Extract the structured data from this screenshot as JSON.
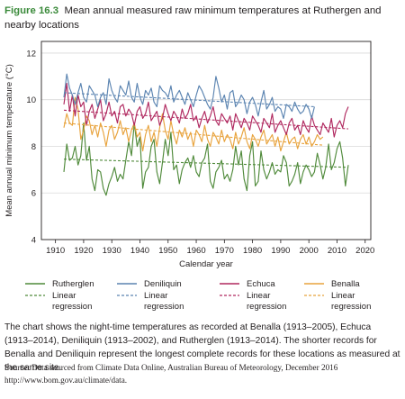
{
  "figure": {
    "number": "Figure 16.3",
    "title": "Mean annual measured raw minimum temperatures at Ruthergen and nearby locations"
  },
  "caption": "The chart shows the night-time temperatures as recorded at Benalla (1913–2005), Echuca (1913–2014), Deniliquin (1913–2002), and Rutherglen (1913–2014). The shorter records for Benalla and Deniliquin represent the longest complete records for these locations as measured at the same site.",
  "source": {
    "line1": "Source: Data sourced from Climate Data Online, Australian Bureau of Meteorology, December 2016",
    "line2": "http://www.bom.gov.au/climate/data."
  },
  "colors": {
    "Rutherglen": "#4f8a3a",
    "Deniliquin": "#5b84b1",
    "Echuca": "#b0285f",
    "Benalla": "#e8a33d",
    "axis": "#231f20",
    "grid": "#d9d9d9"
  },
  "chart_data": {
    "type": "line",
    "title": "",
    "xlabel": "Calendar year",
    "ylabel": "Mean annual minimum temperature (°C)",
    "xlim": [
      1905,
      2022
    ],
    "ylim": [
      4,
      12.5
    ],
    "xticks": [
      1910,
      1920,
      1930,
      1940,
      1950,
      1960,
      1970,
      1980,
      1990,
      2000,
      2010,
      2020
    ],
    "yticks": [
      4,
      6,
      8,
      10,
      12
    ],
    "grid": "horizontal",
    "legend_position": "bottom",
    "series": [
      {
        "name": "Rutherglen",
        "start": 1913,
        "values": [
          6.9,
          8.1,
          7.4,
          7.5,
          8.0,
          7.2,
          7.6,
          9.0,
          7.4,
          8.0,
          6.6,
          6.1,
          7.0,
          6.9,
          6.2,
          5.9,
          6.4,
          6.7,
          7.1,
          6.5,
          6.8,
          6.6,
          7.4,
          8.2,
          7.6,
          9.0,
          8.0,
          8.4,
          6.2,
          6.9,
          7.1,
          8.0,
          8.3,
          6.9,
          6.4,
          7.3,
          8.3,
          7.6,
          8.6,
          7.0,
          7.2,
          6.4,
          7.0,
          7.3,
          7.5,
          7.1,
          7.6,
          6.9,
          6.7,
          7.3,
          7.5,
          8.1,
          6.5,
          6.2,
          6.9,
          7.1,
          7.4,
          6.6,
          6.8,
          6.5,
          7.0,
          8.0,
          7.2,
          7.8,
          6.6,
          6.1,
          7.6,
          8.2,
          6.3,
          6.5,
          7.8,
          7.0,
          6.6,
          6.9,
          7.3,
          6.8,
          7.0,
          6.9,
          7.6,
          7.3,
          6.3,
          6.5,
          6.8,
          7.3,
          6.4,
          6.9,
          7.2,
          7.0,
          6.7,
          6.9,
          7.7,
          7.2,
          6.6,
          7.1,
          8.1,
          7.0,
          7.3,
          7.9,
          8.2,
          7.5,
          6.3,
          7.2
        ],
        "trend": [
          7.45,
          7.1
        ]
      },
      {
        "name": "Deniliquin",
        "start": 1913,
        "values": [
          10.1,
          11.1,
          10.5,
          10.2,
          9.8,
          10.3,
          10.7,
          10.1,
          9.9,
          10.6,
          10.4,
          10.2,
          9.7,
          10.1,
          10.3,
          9.8,
          10.9,
          10.4,
          10.1,
          9.9,
          10.6,
          10.4,
          10.2,
          10.8,
          10.1,
          9.9,
          10.7,
          10.1,
          9.8,
          10.4,
          10.2,
          10.5,
          9.9,
          9.7,
          10.6,
          10.4,
          10.3,
          10.1,
          10.6,
          9.9,
          10.2,
          10.4,
          10.1,
          9.8,
          10.3,
          10.0,
          9.7,
          10.2,
          10.6,
          10.4,
          10.1,
          9.8,
          9.6,
          10.1,
          11.0,
          10.5,
          9.9,
          10.2,
          9.6,
          10.3,
          10.4,
          9.7,
          9.9,
          10.2,
          10.0,
          9.4,
          9.9,
          10.1,
          9.8,
          9.3,
          9.9,
          10.4,
          9.6,
          9.8,
          10.1,
          9.5,
          9.7,
          9.6,
          9.2,
          9.8,
          9.7,
          9.5,
          9.9,
          9.6,
          9.4,
          9.5,
          9.8,
          9.6,
          9.2,
          9.7
        ],
        "trend": [
          10.3,
          9.7
        ]
      },
      {
        "name": "Echuca",
        "start": 1913,
        "values": [
          9.8,
          10.7,
          9.5,
          10.2,
          9.3,
          10.2,
          9.7,
          9.9,
          8.9,
          9.5,
          9.8,
          9.2,
          9.6,
          10.0,
          9.1,
          9.4,
          9.9,
          9.3,
          9.5,
          9.0,
          9.7,
          9.8,
          9.3,
          9.6,
          9.4,
          8.9,
          9.5,
          9.7,
          9.2,
          9.4,
          9.9,
          9.1,
          9.3,
          9.5,
          8.9,
          9.2,
          9.8,
          9.4,
          9.1,
          9.5,
          9.3,
          9.0,
          9.6,
          9.2,
          9.4,
          9.8,
          9.1,
          9.3,
          8.8,
          9.2,
          9.5,
          9.0,
          9.3,
          9.7,
          9.1,
          8.9,
          9.4,
          9.2,
          9.0,
          9.3,
          8.7,
          9.4,
          9.1,
          8.8,
          9.2,
          9.0,
          8.7,
          9.3,
          9.1,
          8.9,
          8.6,
          9.2,
          9.0,
          8.8,
          9.4,
          8.6,
          8.9,
          9.1,
          8.8,
          8.5,
          9.0,
          9.2,
          8.7,
          8.9,
          8.5,
          9.1,
          8.8,
          8.6,
          9.3,
          8.9,
          8.7,
          8.5,
          9.0,
          8.8,
          8.6,
          9.2,
          8.4,
          8.9,
          9.1,
          8.8,
          9.4,
          9.7
        ],
        "trend": [
          9.55,
          8.75
        ]
      },
      {
        "name": "Benalla",
        "start": 1913,
        "values": [
          8.8,
          9.4,
          9.0,
          8.9,
          10.1,
          9.6,
          8.3,
          8.7,
          9.3,
          9.1,
          8.5,
          8.9,
          8.4,
          9.0,
          8.6,
          8.0,
          8.7,
          8.9,
          8.3,
          8.6,
          9.1,
          8.5,
          8.8,
          8.2,
          8.7,
          9.0,
          8.4,
          8.6,
          7.8,
          8.5,
          8.9,
          8.2,
          8.6,
          8.0,
          8.8,
          9.4,
          8.7,
          8.3,
          9.1,
          8.5,
          8.1,
          8.7,
          8.4,
          8.8,
          8.3,
          8.6,
          8.0,
          8.7,
          8.5,
          8.2,
          8.9,
          8.3,
          8.0,
          8.6,
          8.4,
          8.1,
          8.7,
          8.2,
          8.5,
          8.3,
          7.9,
          8.6,
          8.1,
          8.4,
          8.8,
          8.2,
          7.9,
          8.5,
          8.3,
          8.0,
          8.4,
          8.7,
          8.1,
          8.3,
          8.5,
          8.0,
          8.4,
          7.8,
          8.2,
          8.6,
          8.1,
          8.3,
          8.4,
          7.9,
          8.3,
          8.5,
          8.1,
          8.4,
          8.0,
          8.2,
          8.5,
          8.3,
          8.4
        ],
        "trend": [
          9.0,
          8.05
        ]
      }
    ],
    "legend": [
      {
        "name": "Rutherglen",
        "trend_label_1": "Linear",
        "trend_label_2": "regression"
      },
      {
        "name": "Deniliquin",
        "trend_label_1": "Linear",
        "trend_label_2": "regression"
      },
      {
        "name": "Echuca",
        "trend_label_1": "Linear",
        "trend_label_2": "regression"
      },
      {
        "name": "Benalla",
        "trend_label_1": "Linear",
        "trend_label_2": "regression"
      }
    ]
  }
}
